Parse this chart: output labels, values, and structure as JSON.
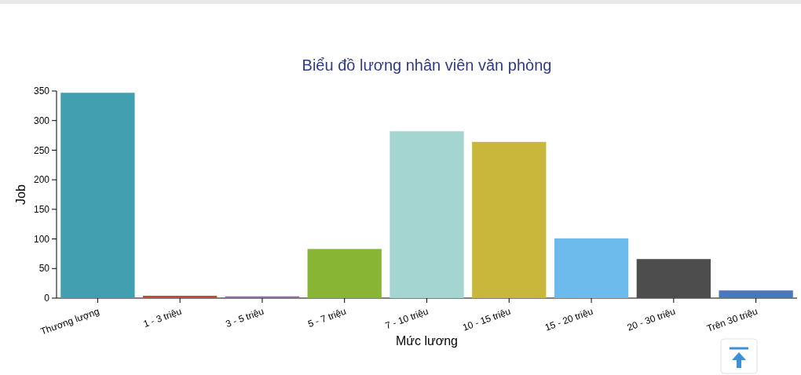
{
  "chart_data": {
    "type": "bar",
    "title": "Biểu đồ lương nhân viên văn phòng",
    "xlabel": "Mức lương",
    "ylabel": "Job",
    "categories": [
      "Thương lượng",
      "1 - 3 triệu",
      "3 - 5 triệu",
      "5 - 7 triệu",
      "7 - 10 triệu",
      "10 - 15 triệu",
      "15 - 20 triệu",
      "20 - 30 triệu",
      "Trên 30 triệu"
    ],
    "values": [
      347,
      4,
      3,
      83,
      282,
      264,
      101,
      66,
      13
    ],
    "colors": [
      "#419fb0",
      "#d0453a",
      "#8e6fa0",
      "#88b634",
      "#a5d5d0",
      "#c8b73b",
      "#6dbbec",
      "#4d4d4d",
      "#4b77be"
    ],
    "ylim": [
      0,
      350
    ],
    "yticks": [
      0,
      50,
      100,
      150,
      200,
      250,
      300,
      350
    ],
    "grid": false
  }
}
